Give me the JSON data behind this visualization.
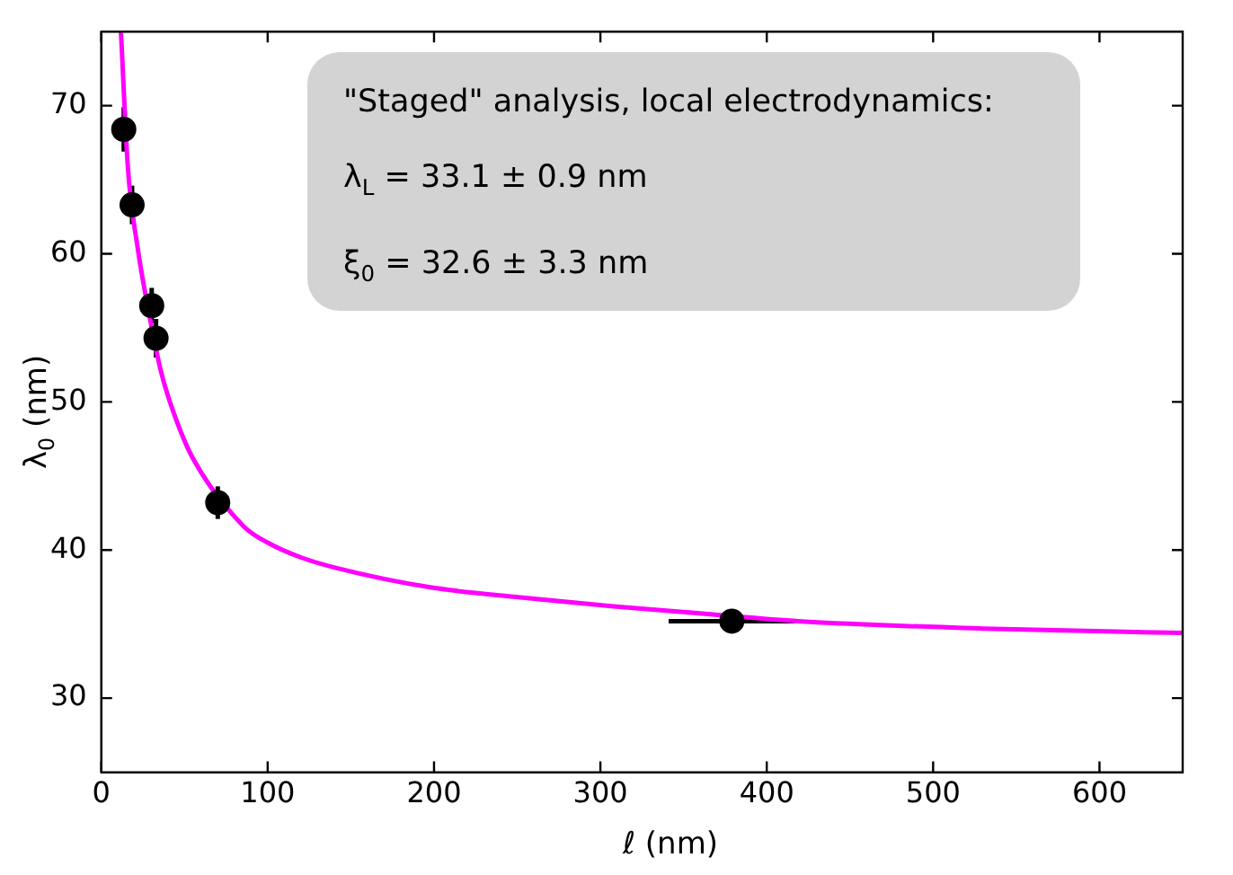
{
  "chart_data": {
    "type": "scatter",
    "xlabel": "ℓ (nm)",
    "ylabel": "λ$_{0}$ (nm)",
    "annotations": [
      "\"Staged\" analysis, local electrodynamics:",
      "λ$_{L}$ = 33.1 ± 0.9 nm",
      "ξ$_{0}$ = 32.6 ± 3.3 nm"
    ],
    "xlim": [
      0,
      650
    ],
    "ylim": [
      25,
      75
    ],
    "xticks": [
      0,
      100,
      200,
      300,
      400,
      500,
      600
    ],
    "yticks": [
      30,
      40,
      50,
      60,
      70
    ],
    "grid": false,
    "legend": false,
    "series": [
      {
        "type": "line",
        "color": "#ff00ff",
        "marker": "none",
        "line_style": "solid",
        "x": [
          11.8,
          16,
          22,
          26,
          36,
          45,
          55,
          85.6,
          100,
          120,
          141,
          197,
          252,
          308,
          363,
          419,
          530,
          650
        ],
        "values": [
          75,
          65.8,
          60.3,
          57.6,
          52,
          48.8,
          46.2,
          41.6,
          40.5,
          39.5,
          38.8,
          37.5,
          36.8,
          36.2,
          35.7,
          35.2,
          34.7,
          34.4
        ]
      },
      {
        "type": "scatter",
        "color": "#000000",
        "marker": "circle",
        "x": [
          13.5,
          18.5,
          30.3,
          32.9,
          70,
          379
        ],
        "values": [
          68.4,
          63.3,
          56.5,
          54.3,
          43.2,
          35.2
        ],
        "errors": [
          1.5,
          1.3,
          1.2,
          1.3,
          1.1,
          null
        ],
        "xerrors": [
          null,
          null,
          null,
          null,
          null,
          38
        ]
      }
    ]
  }
}
